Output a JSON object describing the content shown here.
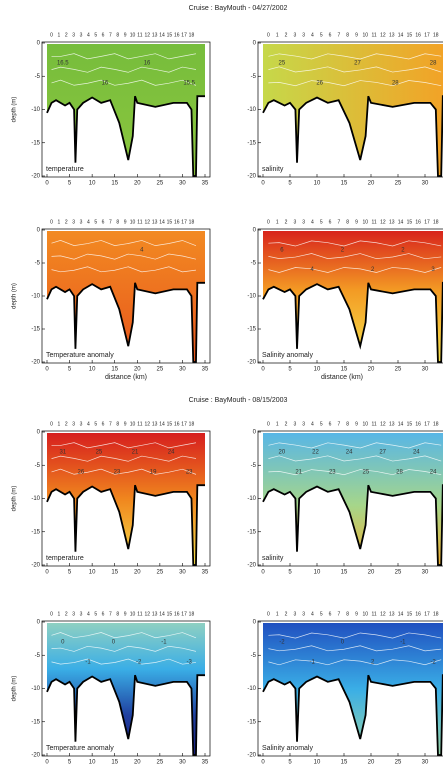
{
  "axes": {
    "y_label": "depth (m)",
    "x_label": "distance (km)",
    "yticks": [
      0,
      -5,
      -10,
      -15,
      -20
    ],
    "xticks": [
      0,
      5,
      10,
      15,
      20,
      25,
      30,
      35
    ],
    "stations": [
      "0",
      "1",
      "2",
      "3",
      "3",
      "4",
      "5",
      "6",
      "7",
      "8",
      "9",
      "10",
      "11",
      "12",
      "13",
      "14",
      "15",
      "16",
      "17",
      "18"
    ]
  },
  "figures": [
    {
      "title": "Cruise : BayMouth - 04/27/2002",
      "panels": [
        {
          "label": "temperature",
          "contour_labels": [
            "16.5",
            "16",
            "16",
            "15.5"
          ]
        },
        {
          "label": "salinity",
          "contour_labels": [
            "25",
            "26",
            "27",
            "28",
            "28"
          ]
        },
        {
          "label": "Temperature anomaly",
          "contour_labels": [
            "4"
          ]
        },
        {
          "label": "Salinity anomaly",
          "contour_labels": [
            "6",
            "4",
            "2",
            "2",
            "2",
            "3"
          ]
        }
      ]
    },
    {
      "title": "Cruise : BayMouth - 08/15/2003",
      "panels": [
        {
          "label": "temperature",
          "contour_labels": [
            "31",
            "26",
            "25",
            "23",
            "21",
            "19",
            "24",
            "23"
          ]
        },
        {
          "label": "salinity",
          "contour_labels": [
            "20",
            "21",
            "22",
            "23",
            "24",
            "25",
            "27",
            "28",
            "24",
            "24"
          ]
        },
        {
          "label": "Temperature anomaly",
          "contour_labels": [
            "0",
            "-1",
            "0",
            "-2",
            "-1",
            "-3"
          ]
        },
        {
          "label": "Salinity anomaly",
          "contour_labels": [
            "-2",
            "-1",
            "0",
            "2",
            "-1",
            "-2"
          ]
        }
      ]
    }
  ]
}
